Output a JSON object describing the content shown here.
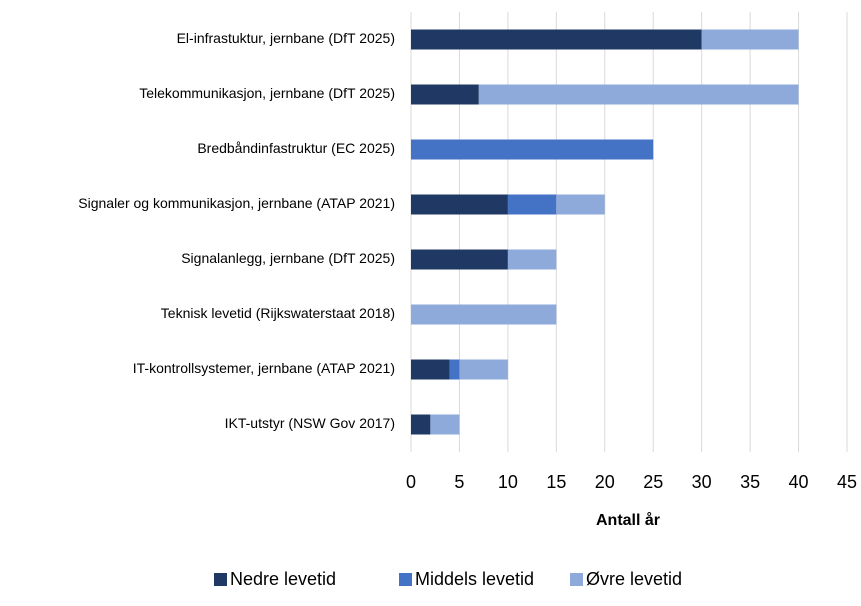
{
  "chart_data": {
    "type": "stacked-barh",
    "categories": [
      "El-infrastuktur, jernbane (DfT 2025)",
      "Telekommunikasjon, jernbane (DfT 2025)",
      "Bredbåndinfastruktur (EC 2025)",
      "Signaler og kommunikasjon, jernbane (ATAP 2021)",
      "Signalanlegg, jernbane (DfT 2025)",
      "Teknisk levetid (Rijkswaterstaat 2018)",
      "IT-kontrollsystemer, jernbane (ATAP 2021)",
      "IKT-utstyr (NSW Gov 2017)"
    ],
    "series": [
      {
        "name": "Nedre levetid",
        "color": "#1f3864",
        "values": [
          30,
          7,
          0,
          10,
          10,
          0,
          4,
          2
        ]
      },
      {
        "name": "Middels levetid",
        "color": "#4472c4",
        "values": [
          0,
          0,
          25,
          5,
          0,
          0,
          1,
          0
        ]
      },
      {
        "name": "Øvre levetid",
        "color": "#8eaadb",
        "values": [
          10,
          33,
          0,
          5,
          5,
          15,
          5,
          3
        ]
      }
    ],
    "xlabel": "Antall år",
    "xlim": [
      0,
      45
    ],
    "xticks": [
      0,
      5,
      10,
      15,
      20,
      25,
      30,
      35,
      40,
      45
    ],
    "grid": true,
    "legend": "bottom"
  }
}
